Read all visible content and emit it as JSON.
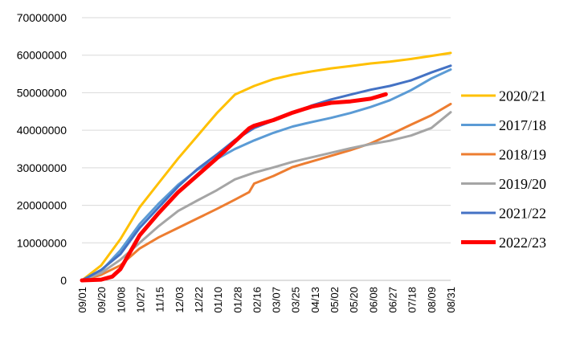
{
  "chart_data": {
    "type": "line",
    "title": "",
    "xlabel": "",
    "ylabel": "",
    "ylim": [
      0,
      70000000
    ],
    "y_ticks": [
      0,
      10000000,
      20000000,
      30000000,
      40000000,
      50000000,
      60000000,
      70000000
    ],
    "y_tick_labels": [
      "0",
      "10000000",
      "20000000",
      "30000000",
      "40000000",
      "50000000",
      "60000000",
      "70000000"
    ],
    "x_tick_labels": [
      "09/01",
      "09/20",
      "10/08",
      "10/27",
      "11/15",
      "12/03",
      "12/22",
      "01/10",
      "01/28",
      "02/16",
      "03/07",
      "03/25",
      "04/13",
      "05/02",
      "05/20",
      "06/08",
      "06/27",
      "07/18",
      "08/09",
      "08/31"
    ],
    "x_unit": "day of season (09/01 = 0, 08/31 = 364)",
    "x_domain": [
      0,
      364
    ],
    "grid": "horizontal",
    "legend_position": "right",
    "series": [
      {
        "name": "2020/21",
        "color": "#FFC000",
        "width": 3,
        "points": [
          [
            0,
            0
          ],
          [
            19,
            4000000
          ],
          [
            38,
            11000000
          ],
          [
            57,
            19500000
          ],
          [
            76,
            26000000
          ],
          [
            95,
            32500000
          ],
          [
            114,
            38500000
          ],
          [
            133,
            44500000
          ],
          [
            151,
            49500000
          ],
          [
            170,
            51800000
          ],
          [
            189,
            53600000
          ],
          [
            208,
            54800000
          ],
          [
            227,
            55700000
          ],
          [
            246,
            56500000
          ],
          [
            265,
            57100000
          ],
          [
            285,
            57800000
          ],
          [
            304,
            58300000
          ],
          [
            325,
            59000000
          ],
          [
            345,
            59800000
          ],
          [
            364,
            60600000
          ]
        ]
      },
      {
        "name": "2017/18",
        "color": "#5B9BD5",
        "width": 3,
        "points": [
          [
            0,
            0
          ],
          [
            19,
            2500000
          ],
          [
            38,
            8000000
          ],
          [
            57,
            15000000
          ],
          [
            76,
            20500000
          ],
          [
            95,
            25500000
          ],
          [
            114,
            29500000
          ],
          [
            133,
            32300000
          ],
          [
            151,
            35000000
          ],
          [
            170,
            37300000
          ],
          [
            189,
            39300000
          ],
          [
            208,
            41000000
          ],
          [
            227,
            42200000
          ],
          [
            246,
            43300000
          ],
          [
            265,
            44600000
          ],
          [
            285,
            46200000
          ],
          [
            304,
            48000000
          ],
          [
            325,
            50700000
          ],
          [
            345,
            53800000
          ],
          [
            364,
            56200000
          ]
        ]
      },
      {
        "name": "2018/19",
        "color": "#ED7D31",
        "width": 3,
        "points": [
          [
            0,
            0
          ],
          [
            19,
            1500000
          ],
          [
            38,
            4000000
          ],
          [
            57,
            8500000
          ],
          [
            76,
            11500000
          ],
          [
            95,
            14000000
          ],
          [
            114,
            16500000
          ],
          [
            133,
            19000000
          ],
          [
            151,
            21500000
          ],
          [
            165,
            23500000
          ],
          [
            170,
            25800000
          ],
          [
            189,
            27800000
          ],
          [
            208,
            30200000
          ],
          [
            227,
            31700000
          ],
          [
            246,
            33200000
          ],
          [
            265,
            34700000
          ],
          [
            285,
            36500000
          ],
          [
            304,
            38800000
          ],
          [
            325,
            41500000
          ],
          [
            345,
            44000000
          ],
          [
            364,
            47000000
          ]
        ]
      },
      {
        "name": "2019/20",
        "color": "#A5A5A5",
        "width": 3,
        "points": [
          [
            0,
            0
          ],
          [
            19,
            2000000
          ],
          [
            38,
            5500000
          ],
          [
            57,
            10000000
          ],
          [
            76,
            14500000
          ],
          [
            95,
            18500000
          ],
          [
            114,
            21300000
          ],
          [
            133,
            24000000
          ],
          [
            151,
            26900000
          ],
          [
            170,
            28700000
          ],
          [
            189,
            30100000
          ],
          [
            208,
            31600000
          ],
          [
            227,
            32800000
          ],
          [
            246,
            34000000
          ],
          [
            265,
            35200000
          ],
          [
            285,
            36300000
          ],
          [
            304,
            37200000
          ],
          [
            325,
            38600000
          ],
          [
            345,
            40600000
          ],
          [
            364,
            44800000
          ]
        ]
      },
      {
        "name": "2021/22",
        "color": "#4472C4",
        "width": 3,
        "points": [
          [
            0,
            0
          ],
          [
            19,
            2800000
          ],
          [
            38,
            7000000
          ],
          [
            57,
            14000000
          ],
          [
            76,
            19500000
          ],
          [
            95,
            25000000
          ],
          [
            114,
            29700000
          ],
          [
            133,
            33500000
          ],
          [
            151,
            37400000
          ],
          [
            170,
            40600000
          ],
          [
            189,
            42600000
          ],
          [
            208,
            44600000
          ],
          [
            227,
            46600000
          ],
          [
            246,
            48200000
          ],
          [
            265,
            49500000
          ],
          [
            285,
            50800000
          ],
          [
            304,
            51800000
          ],
          [
            325,
            53300000
          ],
          [
            345,
            55400000
          ],
          [
            364,
            57200000
          ]
        ]
      },
      {
        "name": "2022/23",
        "color": "#FF0000",
        "width": 5,
        "points": [
          [
            0,
            0
          ],
          [
            19,
            200000
          ],
          [
            30,
            1000000
          ],
          [
            38,
            3000000
          ],
          [
            57,
            12000000
          ],
          [
            76,
            18000000
          ],
          [
            95,
            23500000
          ],
          [
            114,
            28000000
          ],
          [
            133,
            32500000
          ],
          [
            151,
            37000000
          ],
          [
            165,
            40500000
          ],
          [
            170,
            41200000
          ],
          [
            189,
            42700000
          ],
          [
            208,
            44700000
          ],
          [
            227,
            46300000
          ],
          [
            246,
            47300000
          ],
          [
            265,
            47700000
          ],
          [
            285,
            48400000
          ],
          [
            300,
            49600000
          ]
        ]
      }
    ]
  }
}
